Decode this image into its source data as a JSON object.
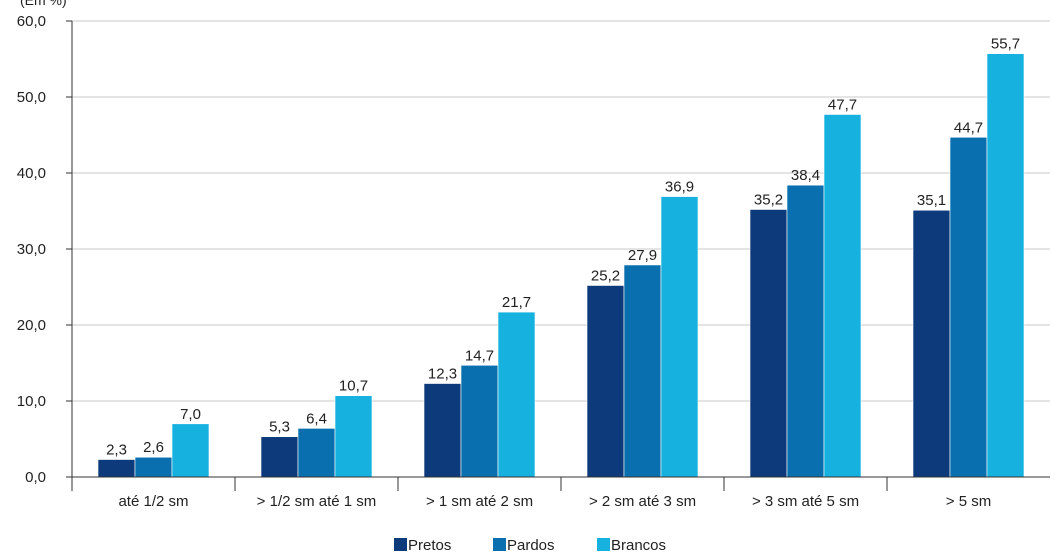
{
  "chart_data": {
    "type": "bar",
    "ylabel": "(Em %)",
    "categories": [
      "até 1/2 sm",
      "> 1/2 sm até 1 sm",
      "> 1 sm até 2 sm",
      "> 2 sm até 3 sm",
      "> 3 sm até 5 sm",
      "> 5 sm"
    ],
    "series": [
      {
        "name": "Pretos",
        "color": "#0d3a7a",
        "values": [
          2.3,
          5.3,
          12.3,
          25.2,
          35.2,
          35.1
        ],
        "labels": [
          "2,3",
          "5,3",
          "12,3",
          "25,2",
          "35,2",
          "35,1"
        ]
      },
      {
        "name": "Pardos",
        "color": "#0a6fae",
        "values": [
          2.6,
          6.4,
          14.7,
          27.9,
          38.4,
          44.7
        ],
        "labels": [
          "2,6",
          "6,4",
          "14,7",
          "27,9",
          "38,4",
          "44,7"
        ]
      },
      {
        "name": "Brancos",
        "color": "#17b1e0",
        "values": [
          7.0,
          10.7,
          21.7,
          36.9,
          47.7,
          55.7
        ],
        "labels": [
          "7,0",
          "10,7",
          "21,7",
          "36,9",
          "47,7",
          "55,7"
        ]
      }
    ],
    "ylim": [
      0,
      60
    ],
    "yticks": [
      0,
      10,
      20,
      30,
      40,
      50,
      60
    ],
    "ytick_labels": [
      "0,0",
      "10,0",
      "20,0",
      "30,0",
      "40,0",
      "50,0",
      "60,0"
    ],
    "grid": true,
    "legend": "bottom-center"
  }
}
